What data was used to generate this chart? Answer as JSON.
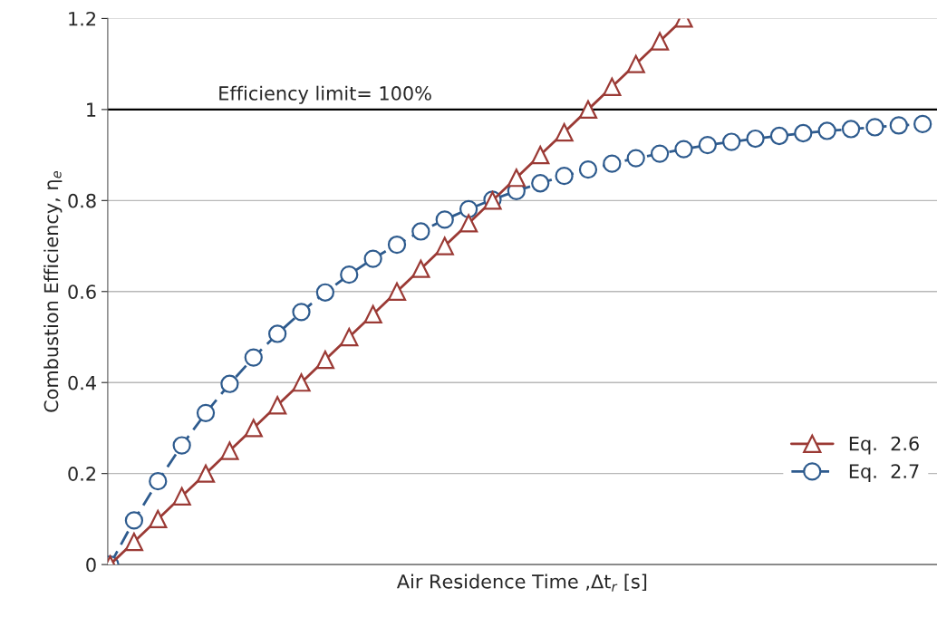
{
  "chart_data": {
    "type": "line",
    "xlabel": "Air Residence Time ,Δt$_{r}$ [s]",
    "ylabel": "Combustion Efficiency, η$_{e}$",
    "categories": [
      null,
      null,
      null,
      null,
      null,
      null,
      null,
      null,
      null,
      null,
      null,
      null,
      null,
      null,
      null,
      null,
      null,
      null,
      null,
      null,
      null,
      null,
      null,
      null,
      null,
      null,
      null,
      null,
      null,
      null,
      null,
      null,
      null,
      null,
      null
    ],
    "series": [
      {
        "name": "Eq.  2.6",
        "color": "#9b3a35",
        "marker": "triangle",
        "line_style": "solid",
        "values": [
          0,
          0.05,
          0.1,
          0.15,
          0.2,
          0.25,
          0.3,
          0.35,
          0.4,
          0.45,
          0.5,
          0.55,
          0.6,
          0.65,
          0.7,
          0.75,
          0.8,
          0.85,
          0.9,
          0.95,
          1,
          1.05,
          1.1,
          1.15,
          1.2,
          null,
          null,
          null,
          null,
          null,
          null,
          null,
          null,
          null,
          null
        ]
      },
      {
        "name": "Eq.  2.7",
        "color": "#2e5b8e",
        "marker": "circle",
        "line_style": "dashed",
        "values": [
          0,
          0.097,
          0.183,
          0.262,
          0.333,
          0.397,
          0.455,
          0.507,
          0.555,
          0.598,
          0.637,
          0.672,
          0.703,
          0.732,
          0.758,
          0.781,
          0.802,
          0.821,
          0.838,
          0.854,
          0.868,
          0.881,
          0.893,
          0.903,
          0.913,
          0.922,
          0.929,
          0.936,
          0.942,
          0.948,
          0.953,
          0.957,
          0.961,
          0.965,
          0.968
        ]
      }
    ],
    "ylim": [
      0,
      1.2
    ],
    "yticks": [
      0,
      0.2,
      0.4,
      0.6,
      0.8,
      1,
      1.2
    ],
    "ref_lines": [
      {
        "axis": "y",
        "value": 1,
        "label": "Efficiency limit= 100%",
        "color": "#000000",
        "line_style": "solid"
      }
    ],
    "grid": "y",
    "legend": "bottom right"
  }
}
